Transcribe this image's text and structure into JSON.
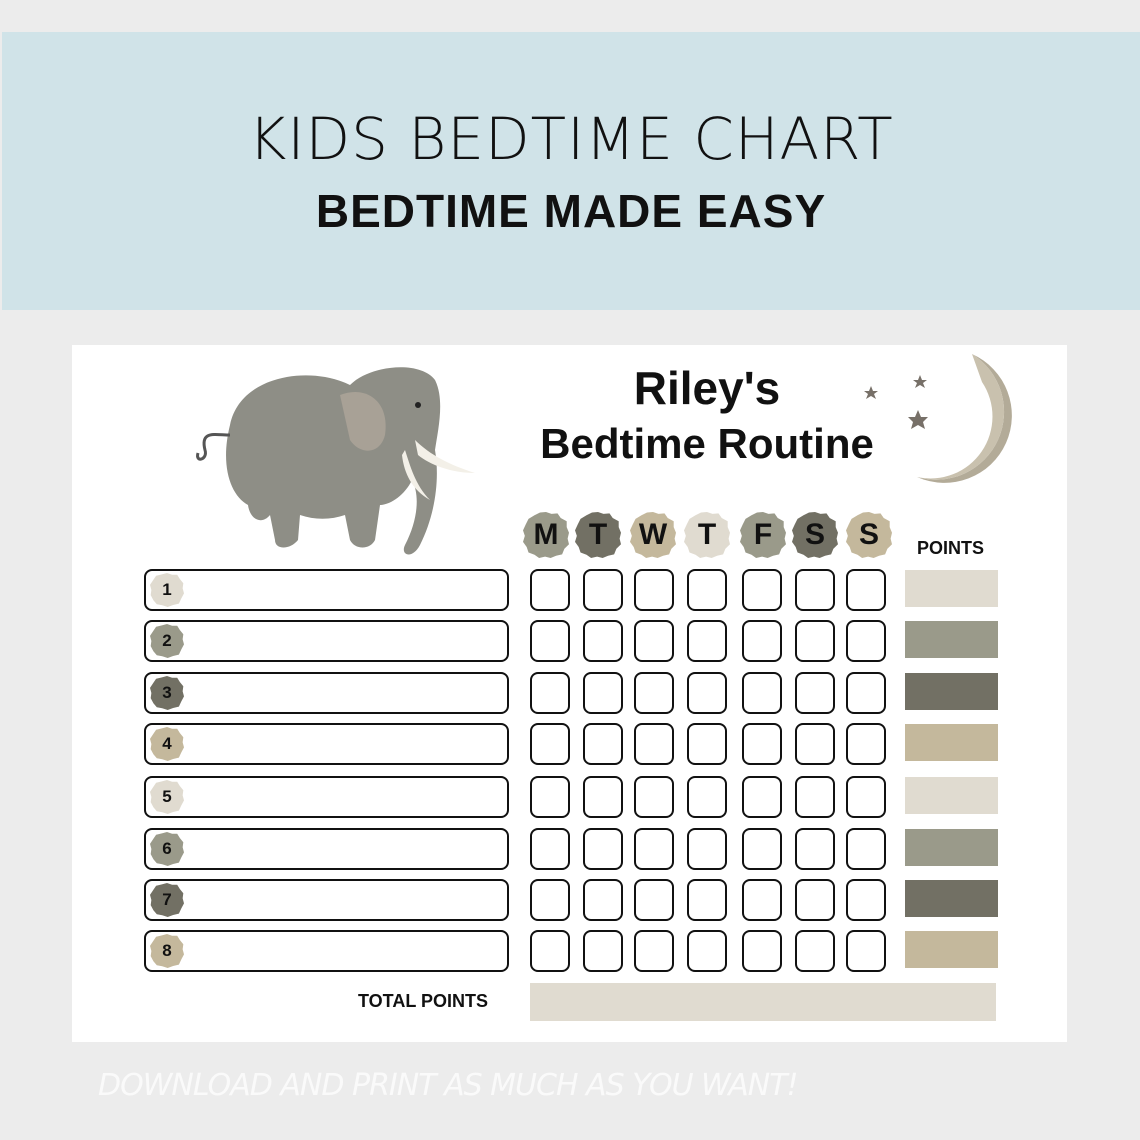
{
  "header": {
    "title": "KIDS BEDTIME CHART",
    "subtitle": "BEDTIME MADE EASY"
  },
  "chart": {
    "heading_line1": "Riley's",
    "heading_line2": "Bedtime Routine",
    "days": [
      {
        "label": "M",
        "color": "#9a9a8a"
      },
      {
        "label": "T",
        "color": "#727064"
      },
      {
        "label": "W",
        "color": "#c4b89c"
      },
      {
        "label": "T",
        "color": "#e0dbd0"
      },
      {
        "label": "F",
        "color": "#9a9a8a"
      },
      {
        "label": "S",
        "color": "#727064"
      },
      {
        "label": "S",
        "color": "#c4b89c"
      }
    ],
    "points_label": "POINTS",
    "rows": [
      {
        "number": "1",
        "color": "#e0dbd0"
      },
      {
        "number": "2",
        "color": "#9a9a8a"
      },
      {
        "number": "3",
        "color": "#727064"
      },
      {
        "number": "4",
        "color": "#c4b89c"
      },
      {
        "number": "5",
        "color": "#e0dbd0"
      },
      {
        "number": "6",
        "color": "#9a9a8a"
      },
      {
        "number": "7",
        "color": "#727064"
      },
      {
        "number": "8",
        "color": "#c4b89c"
      }
    ],
    "total_label": "TOTAL POINTS",
    "illustrations": [
      "elephant",
      "crescent-moon",
      "stars"
    ]
  },
  "footer": {
    "watermark": "DOWNLOAD AND PRINT AS MUCH AS YOU WANT!"
  },
  "colors": {
    "band": "#d0e3e8",
    "total_bar": "#e0dbd0"
  }
}
